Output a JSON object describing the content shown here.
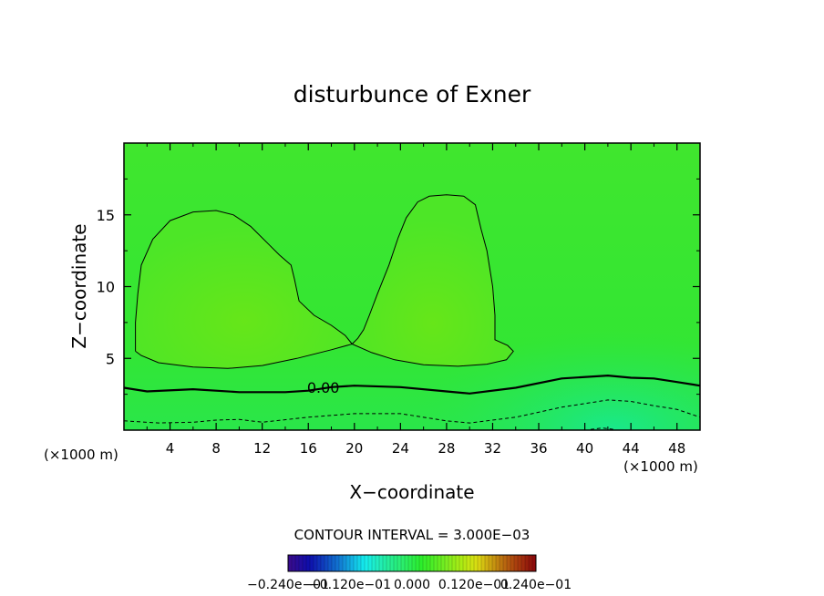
{
  "chart_data": {
    "type": "contour",
    "title": "disturbunce of Exner",
    "xlabel": "X−coordinate",
    "ylabel": "Z−coordinate",
    "x_unit_left": "(×1000 m)",
    "x_unit_right": "(×1000 m)",
    "xlim": [
      0,
      50
    ],
    "ylim": [
      0,
      20
    ],
    "xticks": [
      4,
      8,
      12,
      16,
      20,
      24,
      28,
      32,
      36,
      40,
      44,
      48
    ],
    "yticks": [
      5,
      10,
      15
    ],
    "contour_interval_text": "CONTOUR INTERVAL = 3.000E−03",
    "zero_label": "0.00",
    "colorbar_labels": [
      "−0.240e−01",
      "−0.120e−01",
      "0.000",
      "0.120e−01",
      "0.240e−01"
    ],
    "colors": {
      "background_field": "#33e633",
      "lobe_fill": "#55e622",
      "low_fill": "#1fe87a",
      "contour": "#000000"
    },
    "contours": [
      {
        "level": 0.003,
        "style": "solid-thin",
        "name": "left-lobe",
        "points": [
          [
            1,
            5.5
          ],
          [
            1.5,
            5.2
          ],
          [
            3,
            4.7
          ],
          [
            6,
            4.4
          ],
          [
            9,
            4.3
          ],
          [
            12,
            4.5
          ],
          [
            15,
            5.0
          ],
          [
            18,
            5.6
          ],
          [
            19.8,
            6.0
          ],
          [
            19.2,
            6.6
          ],
          [
            18,
            7.3
          ],
          [
            16.5,
            8.0
          ],
          [
            15.2,
            9.0
          ],
          [
            14.8,
            10.5
          ],
          [
            14.5,
            11.5
          ],
          [
            13.5,
            12.2
          ],
          [
            12.5,
            13.0
          ],
          [
            11,
            14.2
          ],
          [
            9.5,
            15.0
          ],
          [
            8,
            15.3
          ],
          [
            6,
            15.2
          ],
          [
            4,
            14.6
          ],
          [
            2.5,
            13.3
          ],
          [
            1.5,
            11.5
          ],
          [
            1.2,
            9.5
          ],
          [
            1,
            7.5
          ],
          [
            1,
            5.5
          ]
        ]
      },
      {
        "level": 0.003,
        "style": "solid-thin",
        "name": "right-lobe",
        "points": [
          [
            19.8,
            6.0
          ],
          [
            21.5,
            5.4
          ],
          [
            23.5,
            4.9
          ],
          [
            26,
            4.55
          ],
          [
            29,
            4.45
          ],
          [
            31.5,
            4.6
          ],
          [
            33.2,
            4.9
          ],
          [
            33.8,
            5.5
          ],
          [
            33.3,
            5.9
          ],
          [
            32.2,
            6.3
          ],
          [
            32.2,
            8
          ],
          [
            32,
            10
          ],
          [
            31.5,
            12.5
          ],
          [
            31,
            14
          ],
          [
            30.5,
            15.7
          ],
          [
            29.5,
            16.3
          ],
          [
            28,
            16.4
          ],
          [
            26.5,
            16.3
          ],
          [
            25.5,
            15.9
          ],
          [
            24.5,
            14.8
          ],
          [
            23.8,
            13.4
          ],
          [
            23,
            11.5
          ],
          [
            22,
            9.5
          ],
          [
            21.3,
            8
          ],
          [
            20.8,
            7
          ],
          [
            20.3,
            6.4
          ],
          [
            19.8,
            6.0
          ]
        ]
      },
      {
        "level": 0.0,
        "style": "solid-thick",
        "name": "zero-line",
        "points": [
          [
            0,
            2.95
          ],
          [
            2,
            2.7
          ],
          [
            6,
            2.85
          ],
          [
            10,
            2.65
          ],
          [
            14,
            2.65
          ],
          [
            16,
            2.75
          ],
          [
            18,
            3.0
          ],
          [
            20,
            3.1
          ],
          [
            24,
            3.0
          ],
          [
            28,
            2.7
          ],
          [
            30,
            2.55
          ],
          [
            34,
            2.95
          ],
          [
            38,
            3.6
          ],
          [
            42,
            3.8
          ],
          [
            44,
            3.65
          ],
          [
            46,
            3.6
          ],
          [
            48,
            3.35
          ],
          [
            50,
            3.1
          ]
        ]
      },
      {
        "level": -0.003,
        "style": "dashed",
        "name": "neg-line",
        "points": [
          [
            0,
            0.65
          ],
          [
            3,
            0.5
          ],
          [
            6,
            0.55
          ],
          [
            8,
            0.7
          ],
          [
            10,
            0.75
          ],
          [
            12,
            0.55
          ],
          [
            16,
            0.9
          ],
          [
            20,
            1.15
          ],
          [
            24,
            1.15
          ],
          [
            28,
            0.65
          ],
          [
            30,
            0.5
          ],
          [
            34,
            0.9
          ],
          [
            38,
            1.6
          ],
          [
            42,
            2.1
          ],
          [
            44,
            2.0
          ],
          [
            46,
            1.7
          ],
          [
            48,
            1.45
          ],
          [
            50,
            0.9
          ]
        ]
      },
      {
        "level": -0.006,
        "style": "dashed",
        "name": "min-line",
        "points": [
          [
            40.5,
            0.05
          ],
          [
            41.5,
            0.15
          ],
          [
            42.5,
            0.05
          ]
        ]
      }
    ]
  }
}
